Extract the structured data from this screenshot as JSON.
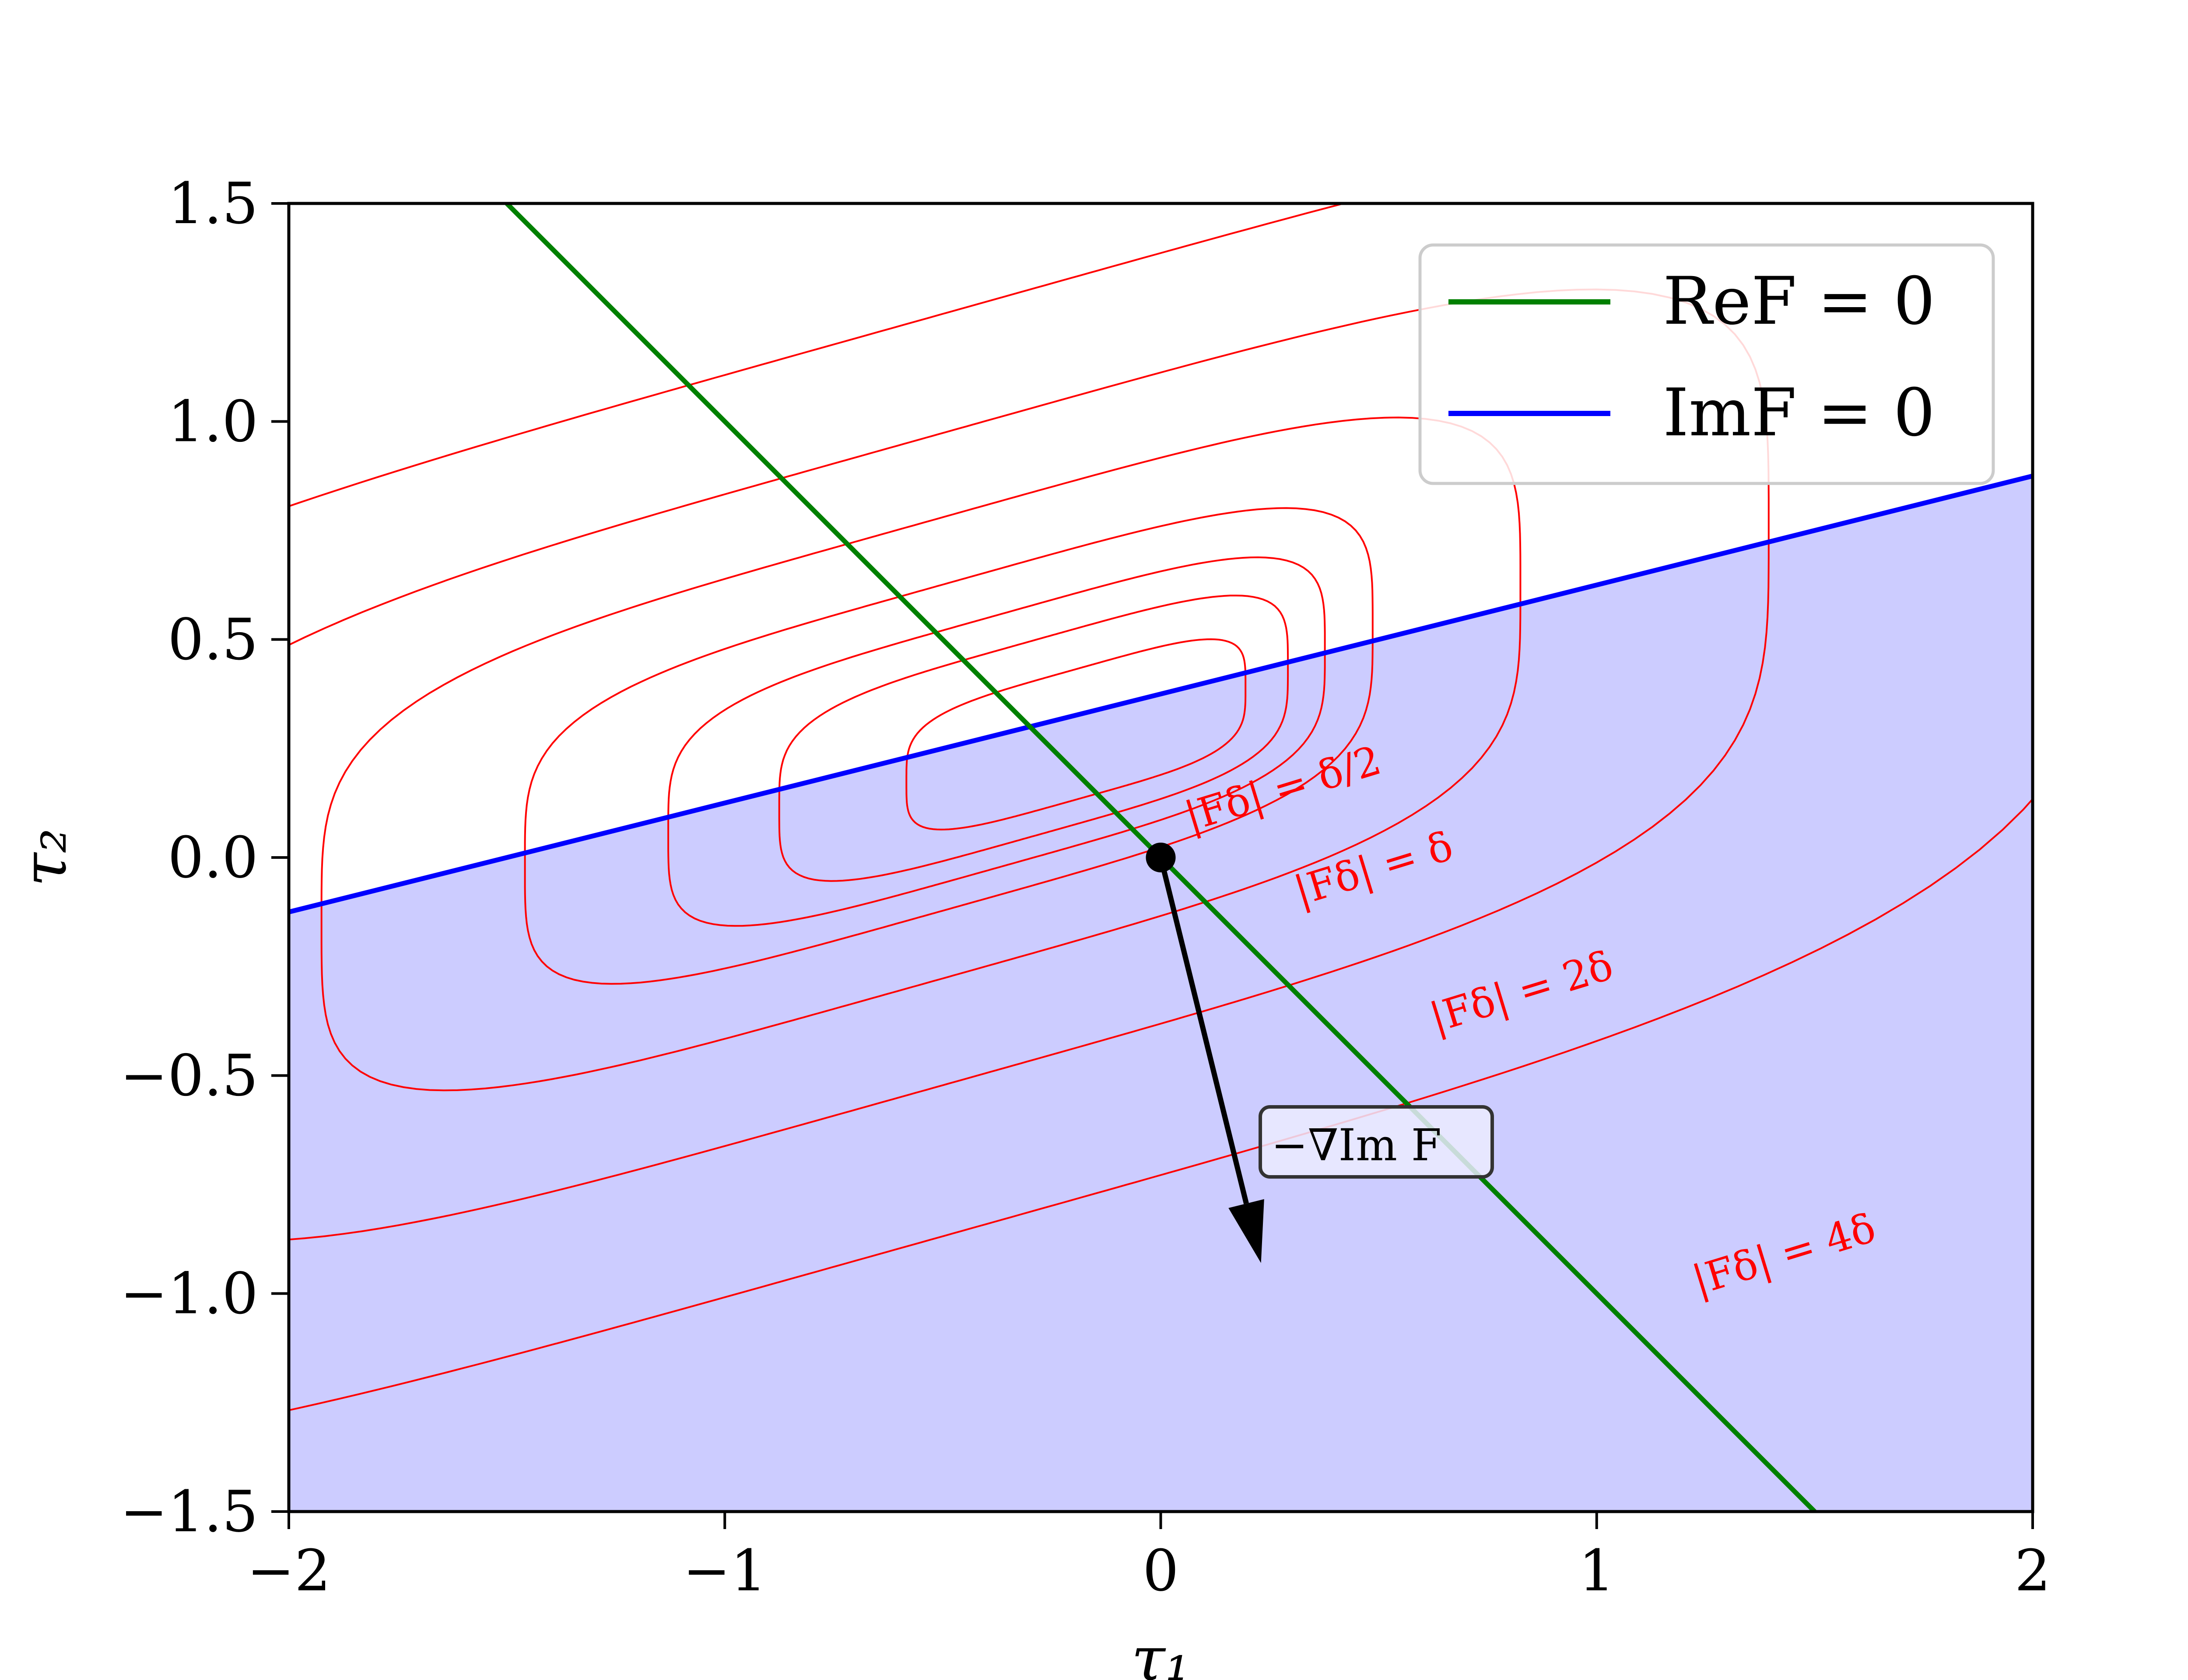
{
  "chart_data": {
    "type": "line",
    "xlabel": "τ₁",
    "ylabel": "τ₂",
    "xlim": [
      -2,
      2
    ],
    "ylim": [
      -1.5,
      1.5
    ],
    "xticks": [
      -2,
      -1,
      0,
      1,
      2
    ],
    "yticks": [
      -1.5,
      -1.0,
      -0.5,
      0.0,
      0.5,
      1.0,
      1.5
    ],
    "xtick_labels": [
      "−2",
      "−1",
      "0",
      "1",
      "2"
    ],
    "ytick_labels": [
      "−1.5",
      "−1.0",
      "−0.5",
      "0.0",
      "0.5",
      "1.0",
      "1.5"
    ],
    "grid": false,
    "legend_position": "top-right",
    "colors": {
      "re_line": "#008000",
      "im_line": "#0000ff",
      "contour": "#ff0000",
      "fill": "#ccccff",
      "arrow": "#000000"
    },
    "series": [
      {
        "name": "ReF = 0",
        "legend_label": "ReF = 0",
        "x": [
          -1.5,
          1.5
        ],
        "y": [
          1.5,
          -1.5
        ]
      },
      {
        "name": "ImF = 0",
        "legend_label": "ImF = 0",
        "x": [
          -2,
          2
        ],
        "y": [
          -0.125,
          0.875
        ]
      }
    ],
    "fill_region": "below ImF = 0",
    "saddle_point": {
      "x": 0,
      "y": 0
    },
    "arrow": {
      "from": [
        0,
        0
      ],
      "to": [
        0.23,
        -0.93
      ],
      "label": "−∇Im F"
    },
    "contours": [
      {
        "label": "|F_δ| = δ/2",
        "text": "|Fδ| = δ/2"
      },
      {
        "label": "|F_δ| = δ",
        "text": "|Fδ| = δ"
      },
      {
        "label": "|F_δ| = 2δ",
        "text": "|Fδ| = 2δ"
      },
      {
        "label": "|F_δ| = 4δ",
        "text": "|Fδ| = 4δ"
      }
    ]
  }
}
